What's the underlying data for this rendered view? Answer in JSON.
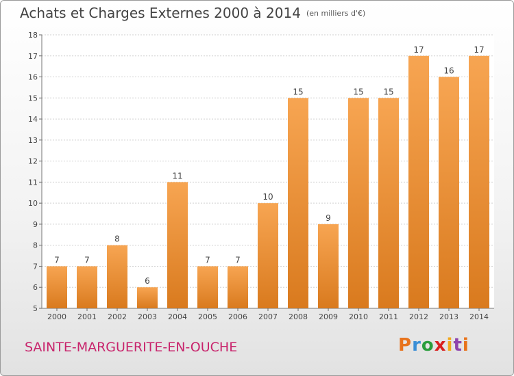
{
  "header": {
    "title": "Achats et Charges Externes 2000 à 2014",
    "subtitle": "(en milliers d'€)"
  },
  "footer": {
    "commune": "SAINTE-MARGUERITE-EN-OUCHE",
    "brand": "Proxiti",
    "brand_colors": [
      "#e8731c",
      "#3b8fd6",
      "#2a9d3c",
      "#d8201f",
      "#f2a81d",
      "#8e44ad",
      "#e8731c"
    ]
  },
  "colors": {
    "bar_top": "#f7a552",
    "bar_bottom": "#d97a1e",
    "grid": "#d0d0d0",
    "commune": "#c8246c"
  },
  "chart_data": {
    "type": "bar",
    "title": "Achats et Charges Externes 2000 à 2014",
    "subtitle": "(en milliers d'€)",
    "categories": [
      "2000",
      "2001",
      "2002",
      "2003",
      "2004",
      "2005",
      "2006",
      "2007",
      "2008",
      "2009",
      "2010",
      "2011",
      "2012",
      "2013",
      "2014"
    ],
    "values": [
      7,
      7,
      8,
      6,
      11,
      7,
      7,
      10,
      15,
      9,
      15,
      15,
      17,
      16,
      17
    ],
    "ylim": [
      5,
      18
    ],
    "yticks": [
      5,
      6,
      7,
      8,
      9,
      10,
      11,
      12,
      13,
      14,
      15,
      16,
      17,
      18
    ],
    "grid": true,
    "xlabel": "",
    "ylabel": ""
  }
}
